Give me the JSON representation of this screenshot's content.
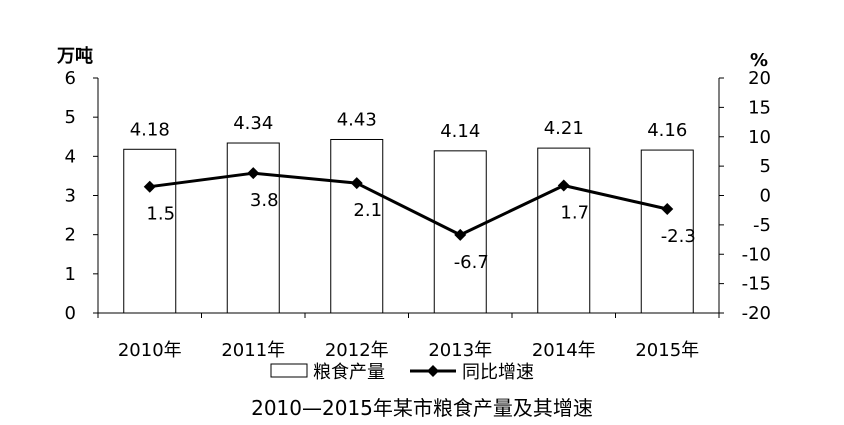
{
  "chart_data": {
    "type": "bar",
    "title": "2010—2015年某市粮食产量及其增速",
    "categories": [
      "2010年",
      "2011年",
      "2012年",
      "2013年",
      "2014年",
      "2015年"
    ],
    "series": [
      {
        "name": "粮食产量",
        "type": "bar",
        "axis": "left",
        "values": [
          4.18,
          4.34,
          4.43,
          4.14,
          4.21,
          4.16
        ]
      },
      {
        "name": "同比增速",
        "type": "line",
        "axis": "right",
        "values": [
          1.5,
          3.8,
          2.1,
          -6.7,
          1.7,
          -2.3
        ]
      }
    ],
    "bar_labels": [
      "4.18",
      "4.34",
      "4.43",
      "4.14",
      "4.21",
      "4.16"
    ],
    "line_labels": [
      "1.5",
      "3.8",
      "2.1",
      "-6.7",
      "1.7",
      "-2.3"
    ],
    "y_left": {
      "label": "万吨",
      "min": 0,
      "max": 6,
      "ticks": [
        "0",
        "1",
        "2",
        "3",
        "4",
        "5",
        "6"
      ]
    },
    "y_right": {
      "label": "%",
      "min": -20,
      "max": 20,
      "ticks": [
        "-20",
        "-15",
        "-10",
        "-5",
        "0",
        "5",
        "10",
        "15",
        "20"
      ]
    },
    "grid": false,
    "legend_position": "bottom"
  }
}
